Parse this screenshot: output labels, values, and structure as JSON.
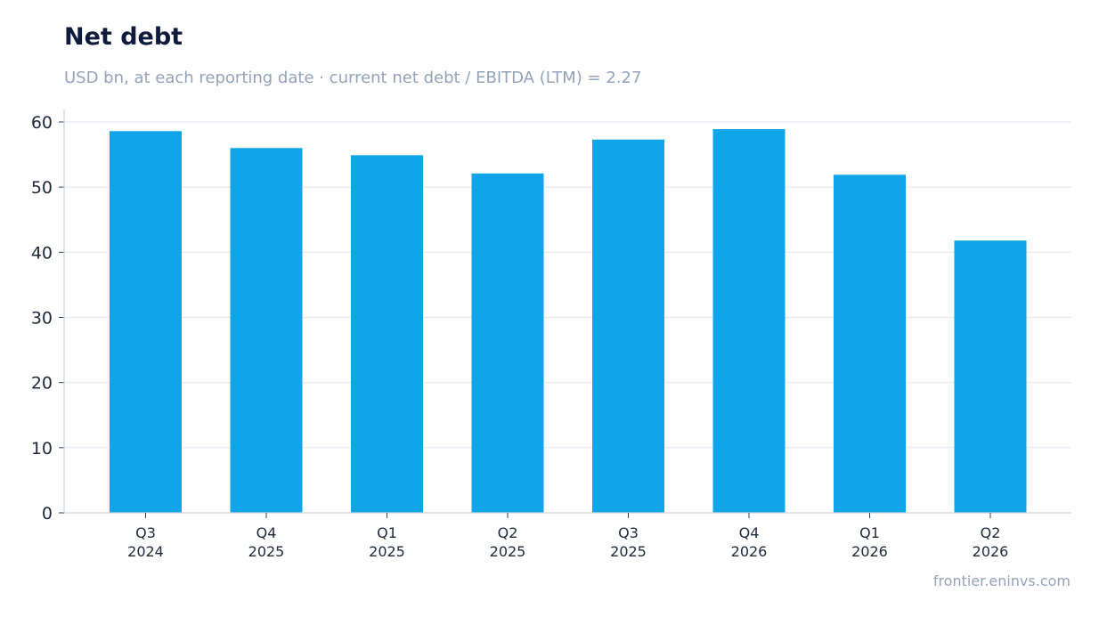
{
  "chart_data": {
    "type": "bar",
    "title": "Net debt",
    "subtitle": "USD bn, at each reporting date · current net debt / EBITDA (LTM) = 2.27",
    "categories": [
      [
        "Q3",
        "2024"
      ],
      [
        "Q4",
        "2025"
      ],
      [
        "Q1",
        "2025"
      ],
      [
        "Q2",
        "2025"
      ],
      [
        "Q3",
        "2025"
      ],
      [
        "Q4",
        "2026"
      ],
      [
        "Q1",
        "2026"
      ],
      [
        "Q2",
        "2026"
      ]
    ],
    "values": [
      58.6,
      56.0,
      54.9,
      52.1,
      57.3,
      58.9,
      51.9,
      41.8
    ],
    "xlabel": "",
    "ylabel": "",
    "ylim": [
      0,
      60
    ],
    "yticks": [
      0,
      10,
      20,
      30,
      40,
      50,
      60
    ],
    "grid": true,
    "bar_color": "#10a5e8",
    "grid_color": "#e2e8f0",
    "axis_color": "#cbd5e1"
  },
  "source": "frontier.eninvs.com"
}
